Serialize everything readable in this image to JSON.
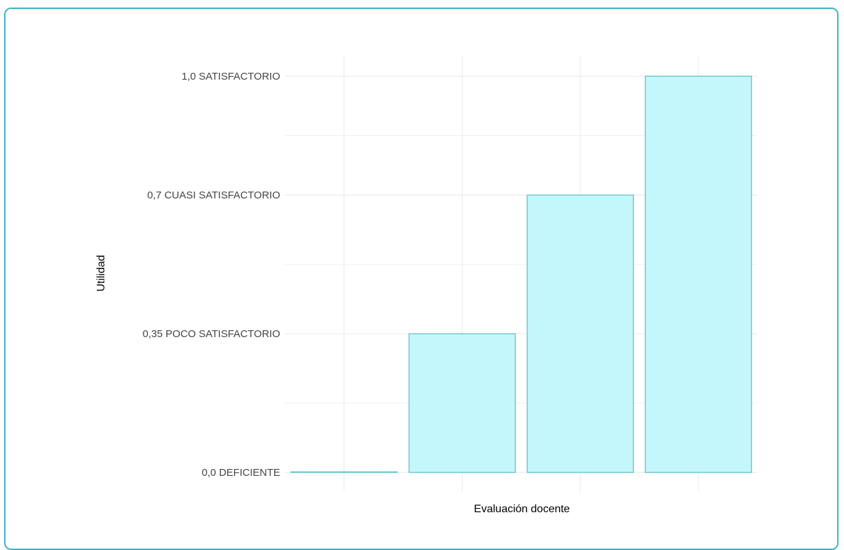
{
  "chart_data": {
    "type": "bar",
    "title": "",
    "xlabel": "Evaluación docente",
    "ylabel": "Utilidad",
    "categories": [
      "",
      "",
      "",
      ""
    ],
    "values": [
      0.0,
      0.35,
      0.7,
      1.0
    ],
    "ylim": [
      0,
      1.0
    ],
    "yticks": [
      {
        "value": 0.0,
        "label": "0,0 DEFICIENTE"
      },
      {
        "value": 0.35,
        "label": "0,35 POCO SATISFACTORIO"
      },
      {
        "value": 0.7,
        "label": "0,7 CUASI SATISFACTORIO"
      },
      {
        "value": 1.0,
        "label": "1,0 SATISFACTORIO"
      }
    ],
    "grid": true,
    "legend": "none",
    "colors": {
      "bar_fill": "#c1f7fb",
      "bar_stroke": "#6cc3cc",
      "grid": "#ebebeb",
      "frame": "#3bb3c3"
    }
  }
}
